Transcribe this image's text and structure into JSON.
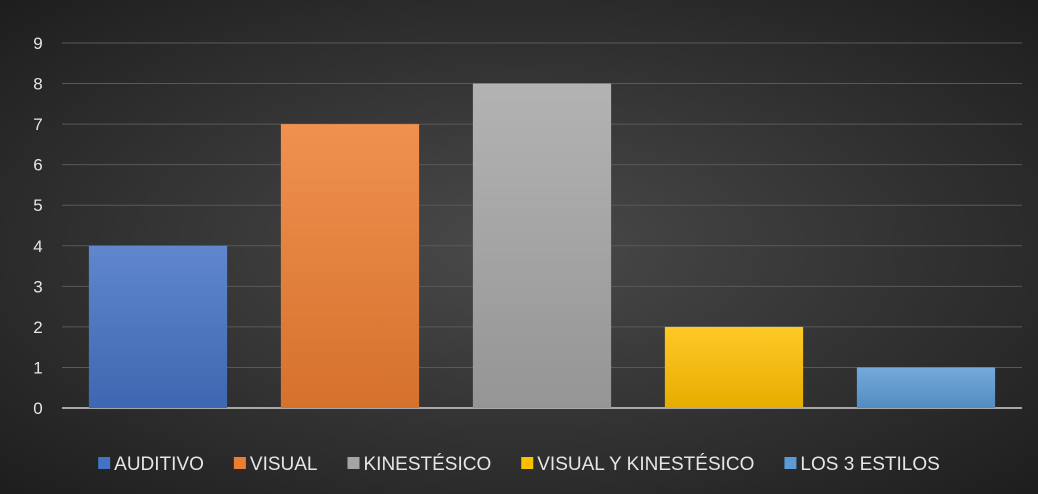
{
  "chart_data": {
    "type": "bar",
    "title": "",
    "xlabel": "",
    "ylabel": "",
    "categories": [
      "AUDITIVO",
      "VISUAL",
      "KINESTÉSICO",
      "VISUAL Y KINESTÉSICO",
      "LOS 3 ESTILOS"
    ],
    "values": [
      4,
      7,
      8,
      2,
      1
    ],
    "ylim": [
      0,
      9
    ],
    "yticks": [
      "0",
      "1",
      "2",
      "3",
      "4",
      "5",
      "6",
      "7",
      "8",
      "9"
    ],
    "grid": true,
    "legend_position": "bottom",
    "colors": [
      "#4472c4",
      "#ed7d31",
      "#a5a5a5",
      "#ffc000",
      "#5b9bd5"
    ]
  },
  "style": {
    "background_center": "#4a4a4a",
    "background_edge": "#1e1e1e",
    "grid_color": "#595959",
    "text_color": "#e6e6e6"
  }
}
